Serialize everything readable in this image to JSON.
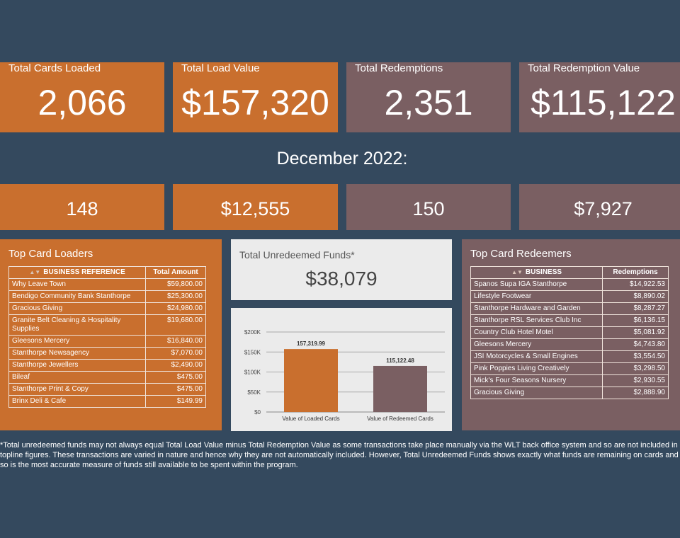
{
  "kpis": [
    {
      "label": "Total Cards Loaded",
      "value": "2,066",
      "color": "#c96f2e"
    },
    {
      "label": "Total Load Value",
      "value": "$157,320",
      "color": "#c96f2e"
    },
    {
      "label": "Total Redemptions",
      "value": "2,351",
      "color": "#7a5f62"
    },
    {
      "label": "Total Redemption Value",
      "value": "$115,122",
      "color": "#7a5f62"
    }
  ],
  "month": {
    "title": "December 2022:",
    "values": [
      "148",
      "$12,555",
      "150",
      "$7,927"
    ]
  },
  "loaders": {
    "title": "Top Card Loaders",
    "col1": "BUSINESS REFERENCE",
    "col2": "Total Amount",
    "rows": [
      {
        "name": "Why Leave Town",
        "amount": "$59,800.00"
      },
      {
        "name": "Bendigo Community Bank Stanthorpe",
        "amount": "$25,300.00"
      },
      {
        "name": "Gracious Giving",
        "amount": "$24,980.00"
      },
      {
        "name": "Granite Belt Cleaning & Hospitality Supplies",
        "amount": "$19,680.00"
      },
      {
        "name": "Gleesons Mercery",
        "amount": "$16,840.00"
      },
      {
        "name": "Stanthorpe Newsagency",
        "amount": "$7,070.00"
      },
      {
        "name": "Stanthorpe Jewellers",
        "amount": "$2,490.00"
      },
      {
        "name": "Bileaf",
        "amount": "$475.00"
      },
      {
        "name": "Stanthorpe Print & Copy",
        "amount": "$475.00"
      },
      {
        "name": "Brinx Deli & Cafe",
        "amount": "$149.99"
      }
    ]
  },
  "unredeemed": {
    "label": "Total Unredeemed Funds*",
    "value": "$38,079"
  },
  "redeemers": {
    "title": "Top Card Redeemers",
    "col1": "BUSINESS",
    "col2": "Redemptions",
    "rows": [
      {
        "name": "Spanos Supa IGA Stanthorpe",
        "amount": "$14,922.53"
      },
      {
        "name": "Lifestyle Footwear",
        "amount": "$8,890.02"
      },
      {
        "name": "Stanthorpe Hardware and Garden",
        "amount": "$8,287.27"
      },
      {
        "name": "Stanthorpe RSL Services Club Inc",
        "amount": "$6,136.15"
      },
      {
        "name": "Country Club Hotel Motel",
        "amount": "$5,081.92"
      },
      {
        "name": "Gleesons Mercery",
        "amount": "$4,743.80"
      },
      {
        "name": "JSI Motorcycles & Small Engines",
        "amount": "$3,554.50"
      },
      {
        "name": "Pink Poppies Living Creatively",
        "amount": "$3,298.50"
      },
      {
        "name": "Mick's Four Seasons Nursery",
        "amount": "$2,930.55"
      },
      {
        "name": "Gracious Giving",
        "amount": "$2,888.90"
      }
    ]
  },
  "chart_data": {
    "type": "bar",
    "categories": [
      "Value of Loaded Cards",
      "Value of Redeemed Cards"
    ],
    "values": [
      157319.99,
      115122.48
    ],
    "data_labels": [
      "157,319.99",
      "115,122.48"
    ],
    "colors": [
      "#c96f2e",
      "#7a5f62"
    ],
    "ylim": [
      0,
      200000
    ],
    "yticks": [
      0,
      50000,
      100000,
      150000,
      200000
    ],
    "ytick_labels": [
      "$0",
      "$50K",
      "$100K",
      "$150K",
      "$200K"
    ],
    "grid": true
  },
  "footnote": "*Total unredeemed funds may not always equal Total Load Value minus Total Redemption Value as some transactions take place manually via the WLT back office system and so are not included in topline figures. These transactions are varied in nature and hence why they are not automatically included.  However, Total Unredeemed Funds shows exactly what funds are remaining on cards and so is the most accurate measure of funds still available to be spent within the program."
}
